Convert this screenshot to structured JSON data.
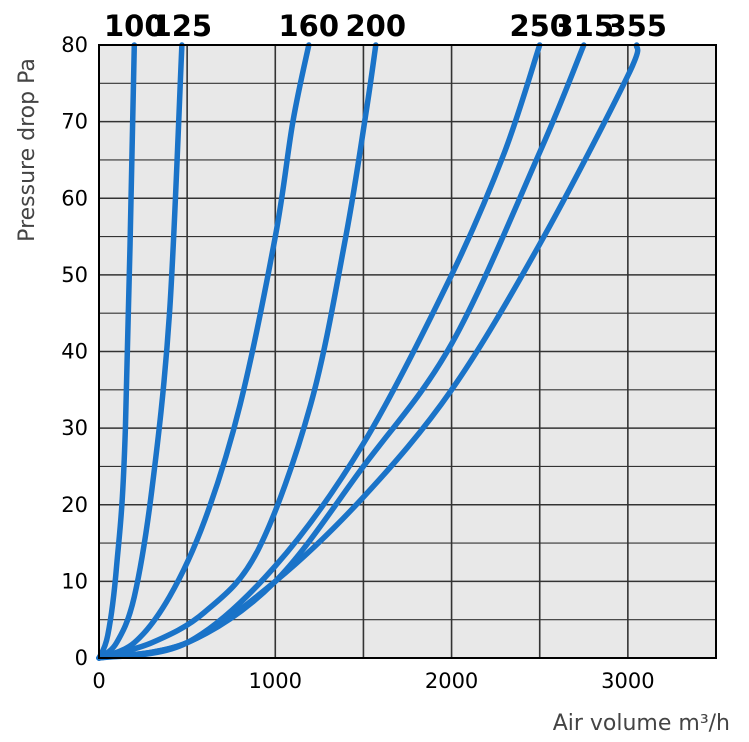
{
  "chart_data": {
    "type": "line",
    "title": "",
    "xlabel": "Air volume m³/h",
    "ylabel": "Pressure drop Pa",
    "xlim": [
      0,
      3500
    ],
    "ylim": [
      0,
      80
    ],
    "x_ticks": [
      "0",
      "1000",
      "2000",
      "3000"
    ],
    "y_ticks": [
      "0",
      "10",
      "20",
      "30",
      "40",
      "50",
      "60",
      "70",
      "80"
    ],
    "grid": true,
    "series_color": "#1a73c8",
    "series": [
      {
        "name": "100",
        "points": [
          [
            0,
            0
          ],
          [
            50,
            3
          ],
          [
            100,
            12
          ],
          [
            150,
            30
          ],
          [
            200,
            80
          ]
        ]
      },
      {
        "name": "125",
        "points": [
          [
            0,
            0
          ],
          [
            100,
            2
          ],
          [
            200,
            8
          ],
          [
            300,
            22
          ],
          [
            400,
            45
          ],
          [
            470,
            80
          ]
        ]
      },
      {
        "name": "160",
        "points": [
          [
            0,
            0
          ],
          [
            200,
            2
          ],
          [
            400,
            8
          ],
          [
            600,
            18
          ],
          [
            800,
            33
          ],
          [
            1000,
            55
          ],
          [
            1100,
            70
          ],
          [
            1190,
            80
          ]
        ]
      },
      {
        "name": "200",
        "points": [
          [
            0,
            0
          ],
          [
            300,
            2
          ],
          [
            600,
            6
          ],
          [
            900,
            14
          ],
          [
            1200,
            33
          ],
          [
            1400,
            55
          ],
          [
            1520,
            72
          ],
          [
            1570,
            80
          ]
        ]
      },
      {
        "name": "250",
        "points": [
          [
            0,
            0
          ],
          [
            500,
            2
          ],
          [
            1000,
            12
          ],
          [
            1500,
            28
          ],
          [
            2000,
            50
          ],
          [
            2300,
            66
          ],
          [
            2500,
            80
          ]
        ]
      },
      {
        "name": "315",
        "points": [
          [
            0,
            0
          ],
          [
            500,
            2
          ],
          [
            1000,
            10
          ],
          [
            1500,
            25
          ],
          [
            2000,
            41
          ],
          [
            2500,
            66
          ],
          [
            2750,
            80
          ]
        ]
      },
      {
        "name": "355",
        "points": [
          [
            0,
            0
          ],
          [
            500,
            2
          ],
          [
            1000,
            10
          ],
          [
            1500,
            21
          ],
          [
            2000,
            35
          ],
          [
            2500,
            54
          ],
          [
            3000,
            76
          ],
          [
            3050,
            80
          ]
        ]
      }
    ]
  }
}
